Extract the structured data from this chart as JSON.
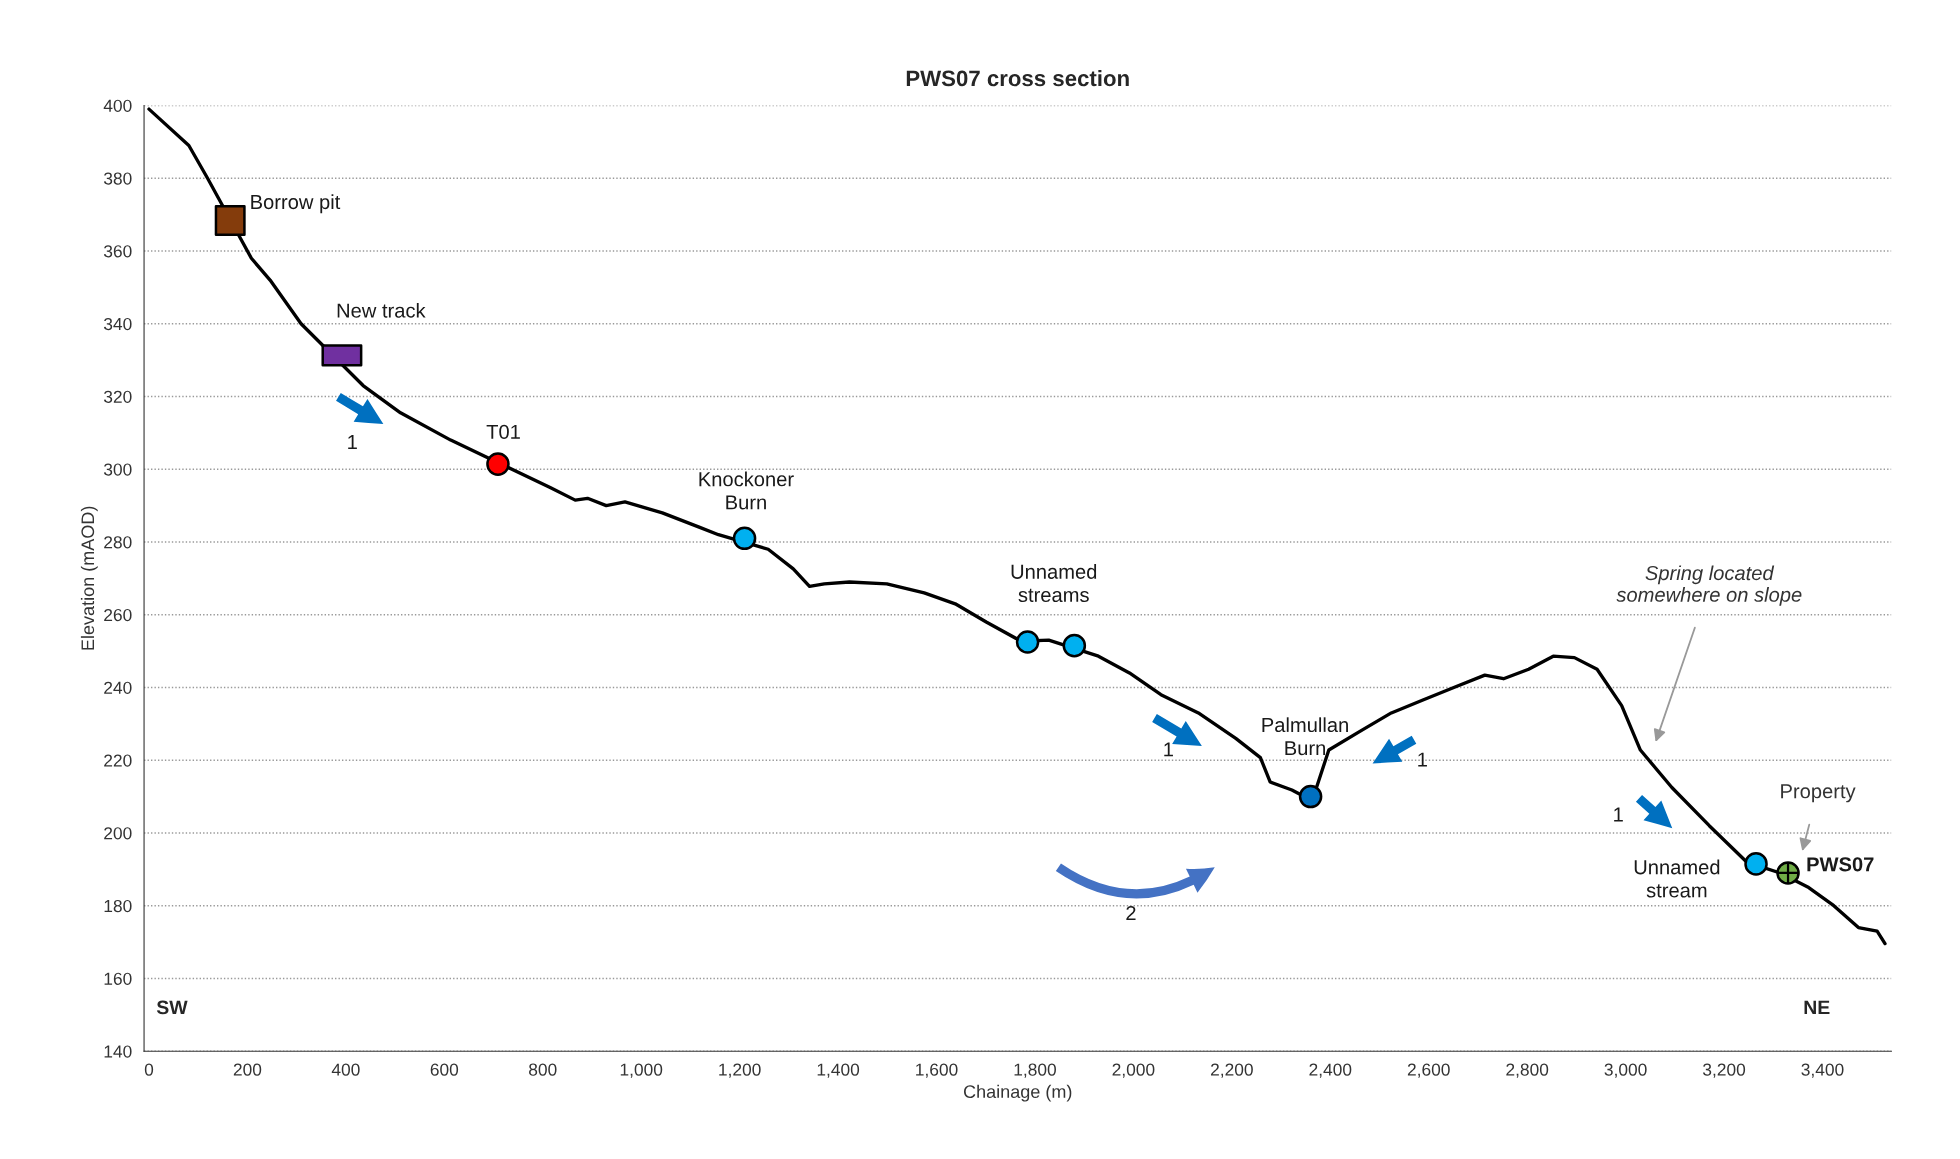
{
  "chart_data": {
    "type": "line",
    "title": "PWS07 cross section",
    "xlabel": "Chainage (m)",
    "ylabel": "Elevation (mAOD)",
    "xlim": [
      -10,
      3540
    ],
    "ylim": [
      140,
      400
    ],
    "xticks": [
      0,
      200,
      400,
      600,
      800,
      {
        "value": 1000,
        "label": "1,000"
      },
      {
        "value": 1200,
        "label": "1,200"
      },
      {
        "value": 1400,
        "label": "1,400"
      },
      {
        "value": 1600,
        "label": "1,600"
      },
      {
        "value": 1800,
        "label": "1,800"
      },
      {
        "value": 2000,
        "label": "2,000"
      },
      {
        "value": 2200,
        "label": "2,200"
      },
      {
        "value": 2400,
        "label": "2,400"
      },
      {
        "value": 2600,
        "label": "2,600"
      },
      {
        "value": 2800,
        "label": "2,800"
      },
      {
        "value": 3000,
        "label": "3,000"
      },
      {
        "value": 3200,
        "label": "3,200"
      },
      {
        "value": 3400,
        "label": "3,400"
      }
    ],
    "yticks": [
      140,
      160,
      180,
      200,
      220,
      240,
      260,
      280,
      300,
      320,
      340,
      360,
      380,
      400
    ],
    "grid": "y",
    "series": [
      {
        "type": "line",
        "color": "#000000",
        "line_style": "solid",
        "x": [
          0,
          81,
          119,
          208,
          246,
          309,
          435,
          511,
          613,
          815,
          866,
          891,
          929,
          967,
          1043,
          1119,
          1157,
          1258,
          1309,
          1342,
          1372,
          1423,
          1499,
          1575,
          1638,
          1701,
          1772,
          1828,
          1929,
          1992,
          2056,
          2132,
          2208,
          2258,
          2278,
          2322,
          2347,
          2372,
          2397,
          2461,
          2524,
          2587,
          2651,
          2714,
          2752,
          2803,
          2853,
          2896,
          2942,
          2992,
          3030,
          3094,
          3170,
          3246,
          3314,
          3372,
          3423,
          3473,
          3511,
          3527
        ],
        "values": [
          399,
          389,
          380,
          358,
          352,
          340,
          323,
          315.5,
          308,
          295,
          291.5,
          292,
          290,
          291,
          288,
          284,
          282,
          278,
          272.6,
          267.8,
          268.5,
          269,
          268.5,
          266,
          263,
          258,
          252.7,
          253,
          248.6,
          244,
          238,
          233,
          226,
          220.7,
          214,
          211.8,
          210,
          212.5,
          222.8,
          228,
          233,
          236.5,
          240,
          243.4,
          242.4,
          245,
          248.6,
          248.2,
          245,
          235,
          222.8,
          212.5,
          202,
          192,
          189,
          185,
          180,
          174,
          173,
          169.6
        ]
      },
      {
        "type": "scatter",
        "name": "Borrow pit",
        "color": "#843c0c",
        "marker": "square",
        "x": [
          165
        ],
        "values": [
          368.4
        ]
      },
      {
        "type": "scatter",
        "name": "New track",
        "color": "#7030a0",
        "marker": "square",
        "x": [
          392
        ],
        "values": [
          331.3
        ]
      },
      {
        "type": "scatter",
        "name": "T01",
        "color": "#ff0000",
        "marker": "circle",
        "x": [
          709
        ],
        "values": [
          301.4
        ]
      },
      {
        "type": "scatter",
        "name": "Knockoner\nBurn",
        "color": "#00b0f0",
        "marker": "circle",
        "x": [
          1210
        ],
        "values": [
          281
        ]
      },
      {
        "type": "scatter",
        "name": "Unnamed\nstreams",
        "color": "#00b0f0",
        "marker": "circle",
        "x": [
          1785,
          1880
        ],
        "values": [
          252.5,
          251.5
        ]
      },
      {
        "type": "scatter",
        "name": "Palmullan\nBurn",
        "color": "#0070c0",
        "marker": "circle",
        "x": [
          2360
        ],
        "values": [
          210
        ]
      },
      {
        "type": "scatter",
        "name": "Unnamed\nstream",
        "color": "#00b0f0",
        "marker": "circle",
        "x": [
          3265
        ],
        "values": [
          191.5
        ]
      },
      {
        "type": "scatter",
        "name": "PWS07",
        "color": "#70ad47",
        "marker": "circle",
        "x": [
          3330
        ],
        "values": [
          189
        ]
      }
    ],
    "annotations": [
      "SW",
      "NE",
      "1",
      "1",
      "1",
      "1",
      "2",
      "Spring located\nsomewhere on slope",
      "Property"
    ]
  }
}
